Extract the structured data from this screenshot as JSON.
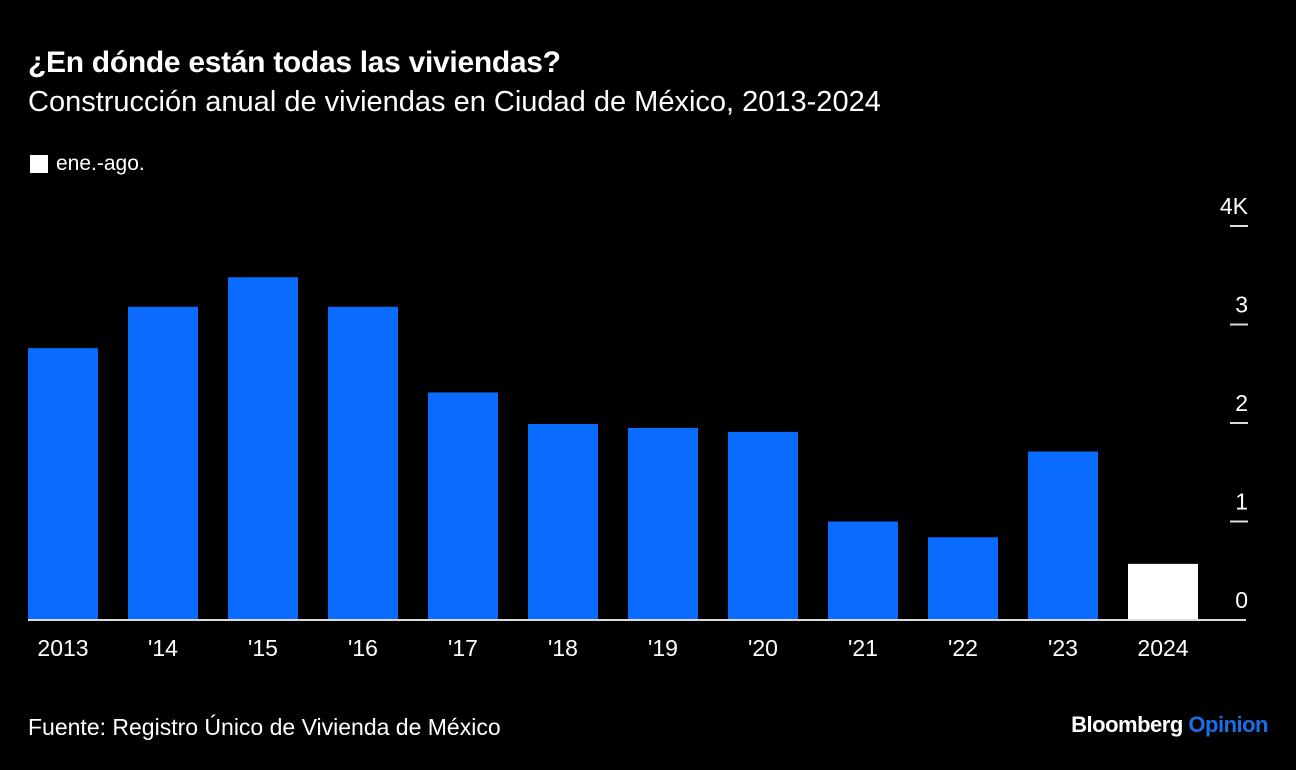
{
  "chart_data": {
    "type": "bar",
    "title": "¿En dónde están todas las viviendas?",
    "subtitle": "Construcción anual de viviendas en Ciudad de México, 2013-2024",
    "categories": [
      "2013",
      "'14",
      "'15",
      "'16",
      "'17",
      "'18",
      "'19",
      "'20",
      "'21",
      "'22",
      "'23",
      "2024"
    ],
    "values": [
      2.76,
      3.18,
      3.48,
      3.18,
      2.31,
      1.99,
      1.95,
      1.91,
      1.0,
      0.84,
      1.71,
      0.57
    ],
    "unit": "K",
    "highlight_index": 11,
    "legend": [
      {
        "label": "ene.-ago.",
        "color": "#ffffff"
      }
    ],
    "legend_placement": "top-left",
    "yticks": [
      "0",
      "1",
      "2",
      "3",
      "4K"
    ],
    "ylim": [
      0,
      4
    ],
    "yaxis_side": "right",
    "grid": false,
    "colors": {
      "bar": "#0a6cff",
      "highlight": "#ffffff",
      "background": "#000000"
    }
  },
  "footer": {
    "source": "Fuente: Registro Único de Vivienda de México",
    "logo_brand": "Bloomberg",
    "logo_product": "Opinion"
  }
}
